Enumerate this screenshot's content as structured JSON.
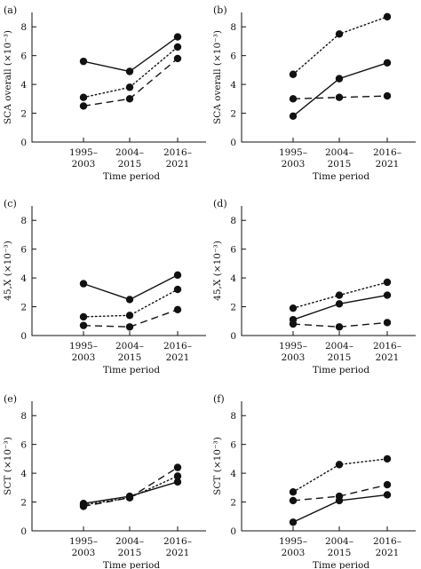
{
  "chart_data": [
    {
      "type": "line",
      "panel_label": "(a)",
      "ylabel": "SCA overall (×10⁻³)",
      "xlabel": "Time period",
      "categories": [
        [
          "1995–",
          "2003"
        ],
        [
          "2004–",
          "2015"
        ],
        [
          "2016–",
          "2021"
        ]
      ],
      "ylim": [
        0,
        9
      ],
      "yticks": [
        0,
        2,
        4,
        6,
        8
      ],
      "series": [
        {
          "style": "solid",
          "values": [
            5.6,
            4.9,
            7.3
          ]
        },
        {
          "style": "dotted",
          "values": [
            3.1,
            3.8,
            6.6
          ]
        },
        {
          "style": "dashed",
          "values": [
            2.5,
            3.0,
            5.8
          ]
        }
      ]
    },
    {
      "type": "line",
      "panel_label": "(b)",
      "ylabel": "SCA overall (×10⁻³)",
      "xlabel": "Time period",
      "categories": [
        [
          "1995–",
          "2003"
        ],
        [
          "2004–",
          "2015"
        ],
        [
          "2016–",
          "2021"
        ]
      ],
      "ylim": [
        0,
        9
      ],
      "yticks": [
        0,
        2,
        4,
        6,
        8
      ],
      "series": [
        {
          "style": "solid",
          "values": [
            1.8,
            4.4,
            5.5
          ]
        },
        {
          "style": "dotted",
          "values": [
            4.7,
            7.5,
            8.7
          ]
        },
        {
          "style": "dashed",
          "values": [
            3.0,
            3.1,
            3.2
          ]
        }
      ]
    },
    {
      "type": "line",
      "panel_label": "(c)",
      "ylabel": "45,X (×10⁻³)",
      "xlabel": "Time period",
      "categories": [
        [
          "1995–",
          "2003"
        ],
        [
          "2004–",
          "2015"
        ],
        [
          "2016–",
          "2021"
        ]
      ],
      "ylim": [
        0,
        9
      ],
      "yticks": [
        0,
        2,
        4,
        6,
        8
      ],
      "series": [
        {
          "style": "solid",
          "values": [
            3.6,
            2.5,
            4.2
          ]
        },
        {
          "style": "dotted",
          "values": [
            1.3,
            1.4,
            3.2
          ]
        },
        {
          "style": "dashed",
          "values": [
            0.7,
            0.6,
            1.8
          ]
        }
      ]
    },
    {
      "type": "line",
      "panel_label": "(d)",
      "ylabel": "45,X (×10⁻³)",
      "xlabel": "Time period",
      "categories": [
        [
          "1995–",
          "2003"
        ],
        [
          "2004–",
          "2015"
        ],
        [
          "2016–",
          "2021"
        ]
      ],
      "ylim": [
        0,
        9
      ],
      "yticks": [
        0,
        2,
        4,
        6,
        8
      ],
      "series": [
        {
          "style": "solid",
          "values": [
            1.1,
            2.2,
            2.8
          ]
        },
        {
          "style": "dotted",
          "values": [
            1.9,
            2.8,
            3.7
          ]
        },
        {
          "style": "dashed",
          "values": [
            0.8,
            0.6,
            0.9
          ]
        }
      ]
    },
    {
      "type": "line",
      "panel_label": "(e)",
      "ylabel": "SCT (×10⁻³)",
      "xlabel": "Time period",
      "categories": [
        [
          "1995–",
          "2003"
        ],
        [
          "2004–",
          "2015"
        ],
        [
          "2016–",
          "2021"
        ]
      ],
      "ylim": [
        0,
        9
      ],
      "yticks": [
        0,
        2,
        4,
        6,
        8
      ],
      "series": [
        {
          "style": "solid",
          "values": [
            1.9,
            2.4,
            3.4
          ]
        },
        {
          "style": "dotted",
          "values": [
            1.8,
            2.3,
            3.8
          ]
        },
        {
          "style": "dashed",
          "values": [
            1.7,
            2.3,
            4.4
          ]
        }
      ]
    },
    {
      "type": "line",
      "panel_label": "(f)",
      "ylabel": "SCT (×10⁻³)",
      "xlabel": "Time period",
      "categories": [
        [
          "1995–",
          "2003"
        ],
        [
          "2004–",
          "2015"
        ],
        [
          "2016–",
          "2021"
        ]
      ],
      "ylim": [
        0,
        9
      ],
      "yticks": [
        0,
        2,
        4,
        6,
        8
      ],
      "series": [
        {
          "style": "solid",
          "values": [
            0.6,
            2.1,
            2.5
          ]
        },
        {
          "style": "dotted",
          "values": [
            2.7,
            4.6,
            5.0
          ]
        },
        {
          "style": "dashed",
          "values": [
            2.1,
            2.4,
            3.2
          ]
        }
      ]
    }
  ]
}
